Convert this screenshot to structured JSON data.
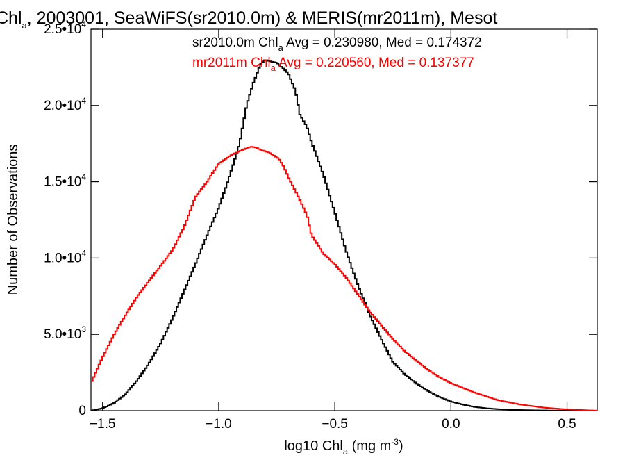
{
  "chart_data": {
    "type": "line",
    "step": true,
    "title": {
      "prefix": "Chl",
      "sub": "a",
      "rest": ", 2003001, SeaWiFS(sr2010.0m) & MERIS(mr2011m), Mesot"
    },
    "xlabel": {
      "prefix": "log10 Chl",
      "sub": "a",
      "mid": " (mg m",
      "sup": "-3",
      "end": ")"
    },
    "ylabel": "Number of Observations",
    "xlim": [
      -1.55,
      0.63
    ],
    "ylim": [
      0,
      25000
    ],
    "xticks": [
      {
        "value": -1.5,
        "label": "−1.5"
      },
      {
        "value": -1.0,
        "label": "−1.0"
      },
      {
        "value": -0.5,
        "label": "−0.5"
      },
      {
        "value": 0.0,
        "label": "0.0"
      },
      {
        "value": 0.5,
        "label": "0.5"
      }
    ],
    "yticks": [
      {
        "value": 0,
        "mant": "0",
        "exp": ""
      },
      {
        "value": 5000,
        "mant": "5.0•10",
        "exp": "3"
      },
      {
        "value": 10000,
        "mant": "1.0•10",
        "exp": "4"
      },
      {
        "value": 15000,
        "mant": "1.5•10",
        "exp": "4"
      },
      {
        "value": 20000,
        "mant": "2.0•10",
        "exp": "4"
      },
      {
        "value": 25000,
        "mant": "2.5•10",
        "exp": "4"
      }
    ],
    "series": [
      {
        "name": "sr2010.0m",
        "color": "#000000",
        "legend": {
          "prefix": "sr2010.0m Chl",
          "sub": "a",
          "rest": " Avg = 0.230980, Med = 0.174372"
        },
        "x": [
          -1.55,
          -1.5,
          -1.45,
          -1.4,
          -1.35,
          -1.3,
          -1.25,
          -1.2,
          -1.15,
          -1.1,
          -1.05,
          -1.0,
          -0.97,
          -0.94,
          -0.91,
          -0.88,
          -0.85,
          -0.82,
          -0.8,
          -0.78,
          -0.75,
          -0.72,
          -0.7,
          -0.67,
          -0.65,
          -0.62,
          -0.6,
          -0.55,
          -0.5,
          -0.45,
          -0.4,
          -0.35,
          -0.3,
          -0.25,
          -0.2,
          -0.15,
          -0.1,
          -0.05,
          0.0,
          0.05,
          0.1,
          0.15,
          0.2,
          0.3,
          0.4,
          0.5,
          0.63
        ],
        "values": [
          0,
          150,
          500,
          1100,
          2000,
          3100,
          4400,
          6000,
          7800,
          9600,
          11500,
          13300,
          14600,
          16000,
          17500,
          20000,
          21500,
          22700,
          23000,
          22900,
          22800,
          22400,
          22100,
          21000,
          19400,
          18600,
          17600,
          15500,
          13000,
          10400,
          8200,
          6300,
          4700,
          3200,
          2400,
          1800,
          1300,
          900,
          600,
          400,
          250,
          160,
          100,
          40,
          15,
          5,
          0
        ]
      },
      {
        "name": "mr2011m",
        "color": "#ff0000",
        "legend": {
          "prefix": "mr2011m Chl",
          "sub": "a",
          "rest": " Avg = 0.220560, Med = 0.137377"
        },
        "x": [
          -1.55,
          -1.5,
          -1.45,
          -1.4,
          -1.35,
          -1.3,
          -1.25,
          -1.2,
          -1.15,
          -1.1,
          -1.05,
          -1.0,
          -0.97,
          -0.94,
          -0.91,
          -0.88,
          -0.86,
          -0.84,
          -0.82,
          -0.8,
          -0.78,
          -0.76,
          -0.74,
          -0.72,
          -0.7,
          -0.67,
          -0.65,
          -0.62,
          -0.6,
          -0.57,
          -0.55,
          -0.5,
          -0.45,
          -0.4,
          -0.35,
          -0.3,
          -0.25,
          -0.2,
          -0.15,
          -0.1,
          -0.05,
          0.0,
          0.05,
          0.1,
          0.2,
          0.3,
          0.4,
          0.5,
          0.63
        ],
        "values": [
          1800,
          3500,
          5000,
          6300,
          7500,
          8500,
          9500,
          10500,
          12000,
          14000,
          15000,
          16200,
          16500,
          16800,
          17000,
          17200,
          17300,
          17250,
          17100,
          17000,
          16900,
          16700,
          16500,
          16000,
          15300,
          14400,
          13800,
          12800,
          11500,
          10800,
          10300,
          9600,
          8700,
          7600,
          6500,
          5600,
          4700,
          3900,
          3300,
          2700,
          2200,
          1800,
          1500,
          1200,
          700,
          400,
          200,
          80,
          0
        ]
      }
    ],
    "grid": false,
    "legend_position": "top-right"
  }
}
